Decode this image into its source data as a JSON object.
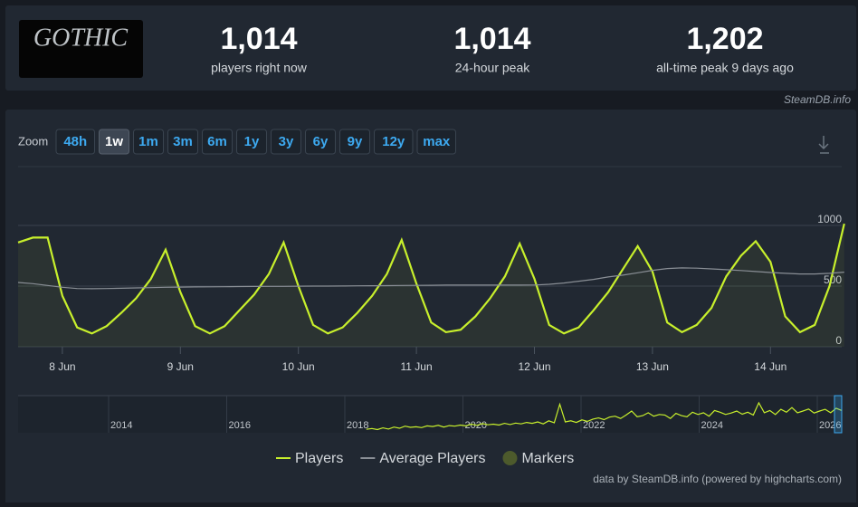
{
  "header": {
    "logo": "GOTHIC",
    "stats": [
      {
        "value": "1,014",
        "label": "players right now"
      },
      {
        "value": "1,014",
        "label": "24-hour peak"
      },
      {
        "value": "1,202",
        "label": "all-time peak 9 days ago"
      }
    ],
    "source": "SteamDB.info"
  },
  "zoom": {
    "label": "Zoom",
    "options": [
      "48h",
      "1w",
      "1m",
      "3m",
      "6m",
      "1y",
      "3y",
      "6y",
      "9y",
      "12y",
      "max"
    ],
    "selected": "1w"
  },
  "chart_data": {
    "type": "line",
    "categories": [
      null,
      null,
      null,
      "8 Jun",
      null,
      null,
      null,
      null,
      null,
      null,
      null,
      "9 Jun",
      null,
      null,
      null,
      null,
      null,
      null,
      null,
      "10 Jun",
      null,
      null,
      null,
      null,
      null,
      null,
      null,
      "11 Jun",
      null,
      null,
      null,
      null,
      null,
      null,
      null,
      "12 Jun",
      null,
      null,
      null,
      null,
      null,
      null,
      null,
      "13 Jun",
      null,
      null,
      null,
      null,
      null,
      null,
      null,
      "14 Jun",
      null,
      null,
      null,
      null,
      null
    ],
    "series": [
      {
        "name": "Players",
        "color": "#c8f02c",
        "values": [
          860,
          900,
          900,
          420,
          160,
          110,
          170,
          280,
          400,
          560,
          800,
          450,
          170,
          110,
          170,
          300,
          430,
          600,
          860,
          500,
          180,
          110,
          160,
          280,
          420,
          600,
          880,
          520,
          200,
          120,
          140,
          250,
          400,
          580,
          850,
          560,
          180,
          110,
          160,
          300,
          450,
          640,
          830,
          620,
          200,
          120,
          180,
          320,
          580,
          750,
          870,
          700,
          250,
          120,
          180,
          500,
          1014
        ]
      },
      {
        "name": "Average Players",
        "color": "#8a8f96",
        "values": [
          530,
          520,
          505,
          490,
          480,
          478,
          480,
          482,
          485,
          487,
          490,
          492,
          493,
          494,
          495,
          496,
          497,
          498,
          498,
          499,
          500,
          500,
          501,
          502,
          503,
          504,
          505,
          506,
          507,
          508,
          508,
          508,
          508,
          508,
          508,
          509,
          515,
          525,
          540,
          555,
          575,
          590,
          610,
          630,
          645,
          650,
          648,
          642,
          635,
          628,
          620,
          612,
          605,
          600,
          600,
          605,
          615
        ]
      }
    ],
    "markers": {
      "name": "Markers",
      "color": "#4d5a2c"
    },
    "ylim": [
      0,
      1000
    ],
    "yticks": [
      0,
      500,
      1000
    ],
    "grid": true
  },
  "navigator": {
    "labels": [
      "2014",
      "2016",
      "2018",
      "2020",
      "2022",
      "2024",
      "2026"
    ],
    "ylim": [
      0,
      1300
    ],
    "values": [
      null,
      null,
      null,
      null,
      null,
      null,
      null,
      null,
      null,
      null,
      null,
      null,
      null,
      null,
      null,
      null,
      null,
      null,
      null,
      null,
      null,
      null,
      null,
      null,
      null,
      null,
      null,
      null,
      null,
      null,
      null,
      null,
      null,
      null,
      null,
      null,
      null,
      null,
      null,
      null,
      null,
      null,
      null,
      null,
      null,
      null,
      null,
      null,
      null,
      null,
      null,
      null,
      null,
      null,
      null,
      null,
      null,
      null,
      null,
      null,
      null,
      null,
      null,
      120,
      150,
      110,
      170,
      130,
      200,
      160,
      230,
      190,
      210,
      180,
      240,
      220,
      260,
      200,
      250,
      230,
      270,
      240,
      300,
      260,
      320,
      280,
      300,
      270,
      330,
      290,
      340,
      310,
      360,
      330,
      380,
      310,
      420,
      350,
      1000,
      380,
      420,
      360,
      450,
      400,
      480,
      520,
      460,
      550,
      580,
      500,
      620,
      760,
      560,
      600,
      700,
      580,
      640,
      620,
      500,
      680,
      600,
      560,
      720,
      640,
      700,
      580,
      780,
      720,
      640,
      690,
      760,
      650,
      720,
      620,
      1050,
      700,
      780,
      640,
      820,
      720,
      880,
      700,
      760,
      830,
      690,
      760,
      820,
      700,
      860,
      780
    ]
  },
  "legend_note": "data by SteamDB.info (powered by highcharts.com)"
}
